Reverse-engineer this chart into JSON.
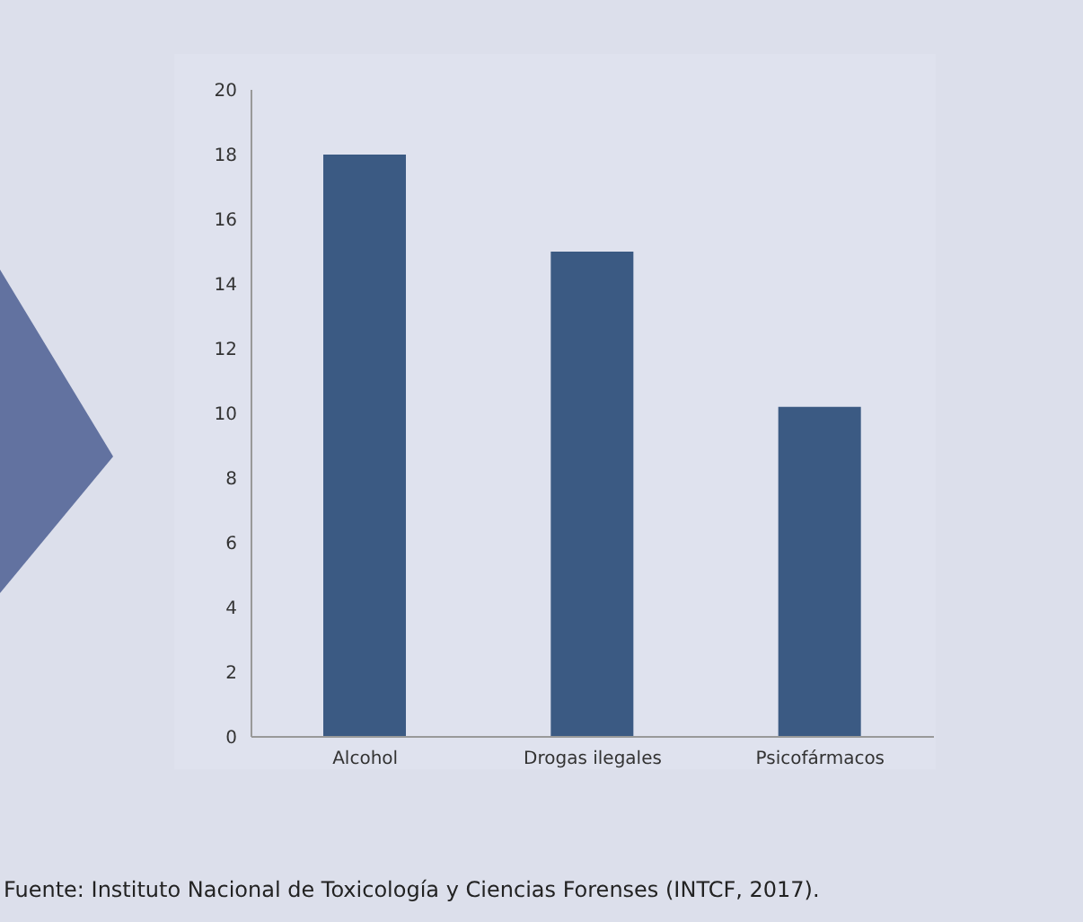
{
  "chart_data": {
    "type": "bar",
    "categories": [
      "Alcohol",
      "Drogas ilegales",
      "Psicofármacos"
    ],
    "values": [
      18,
      15,
      10.2
    ],
    "color": "#3b5a83",
    "ylim": [
      0,
      20
    ],
    "yticks": [
      0,
      2,
      4,
      6,
      8,
      10,
      12,
      14,
      16,
      18,
      20
    ],
    "grid": false,
    "annotations": [
      "Fuente: Instituto Nacional de Toxicología y Ciencias Forenses (INTCF, 2017)."
    ]
  }
}
